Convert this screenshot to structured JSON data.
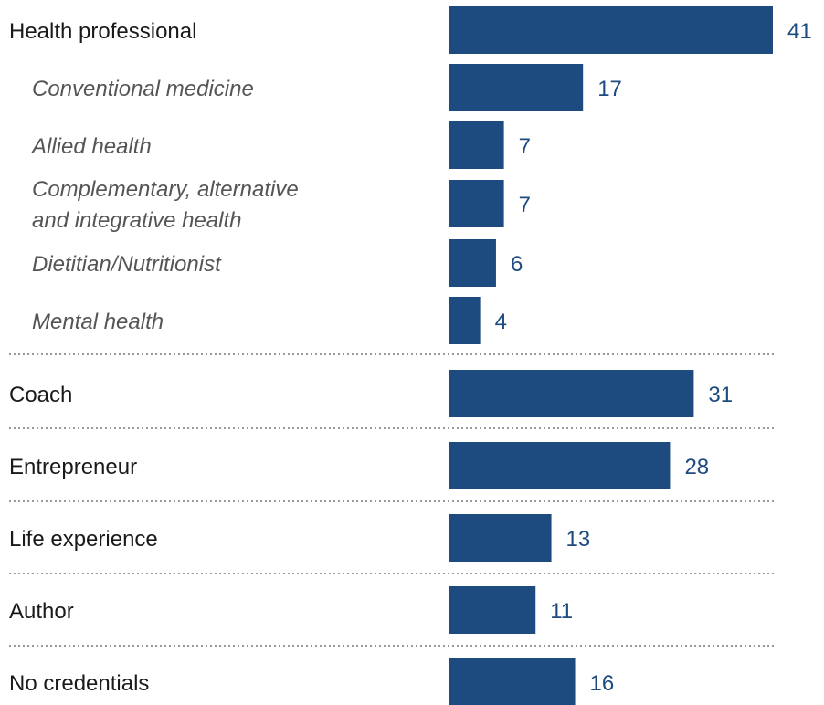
{
  "chart_data": {
    "type": "bar",
    "orientation": "horizontal",
    "categories": [
      {
        "label": "Health professional",
        "level": "main",
        "value": 41
      },
      {
        "label": "Conventional medicine",
        "level": "sub",
        "value": 17
      },
      {
        "label": "Allied health",
        "level": "sub",
        "value": 7
      },
      {
        "label": "Complementary, alternative\nand integrative health",
        "level": "sub",
        "value": 7
      },
      {
        "label": "Dietitian/Nutritionist",
        "level": "sub",
        "value": 6
      },
      {
        "label": "Mental health",
        "level": "sub",
        "value": 4
      },
      {
        "label": "Coach",
        "level": "main",
        "value": 31
      },
      {
        "label": "Entrepreneur",
        "level": "main",
        "value": 28
      },
      {
        "label": "Life experience",
        "level": "main",
        "value": 13
      },
      {
        "label": "Author",
        "level": "main",
        "value": 11
      },
      {
        "label": "No credentials",
        "level": "main",
        "value": 16
      }
    ],
    "xlim": [
      0,
      41
    ],
    "bar_color": "#1d4b80",
    "value_label_color": "#1d4b80",
    "grid": false,
    "legend": "none",
    "title": "",
    "xlabel": "",
    "ylabel": ""
  }
}
